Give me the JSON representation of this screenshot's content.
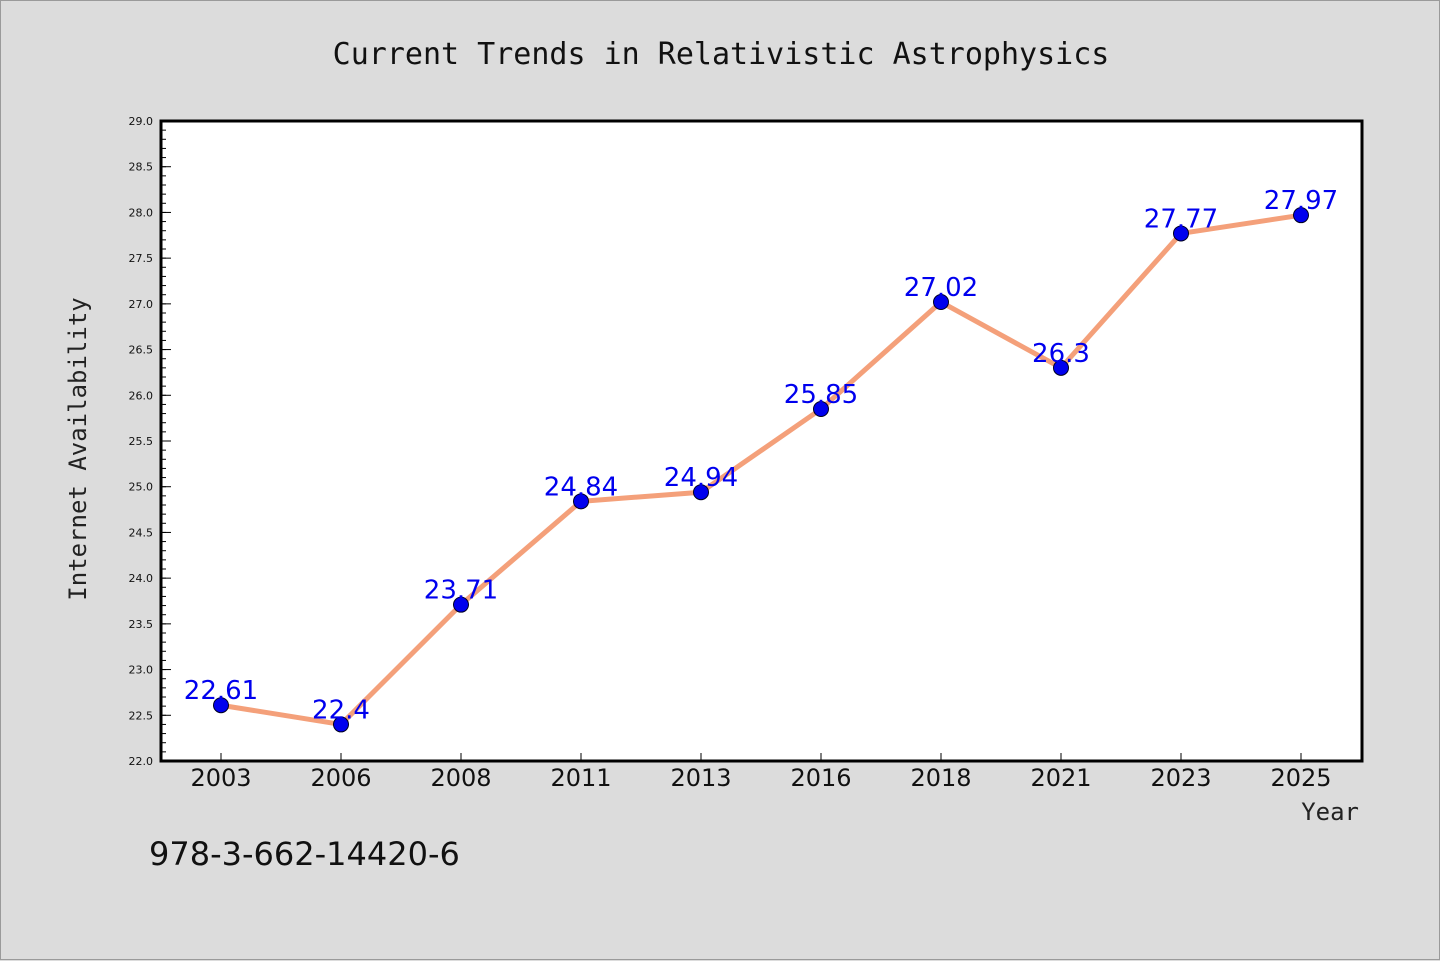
{
  "chart_data": {
    "type": "line",
    "title": "Current Trends in Relativistic Astrophysics",
    "xlabel": "Year",
    "ylabel": "Internet Availability",
    "categories": [
      "2003",
      "2006",
      "2008",
      "2011",
      "2013",
      "2016",
      "2018",
      "2021",
      "2023",
      "2025"
    ],
    "series": [
      {
        "values": [
          22.61,
          22.4,
          23.71,
          24.84,
          24.94,
          25.85,
          27.02,
          26.3,
          27.77,
          27.97
        ],
        "data_labels": [
          "22.61",
          "22.4",
          "23.71",
          "24.84",
          "24.94",
          "25.85",
          "27.02",
          "26.3",
          "27.77",
          "27.97"
        ]
      }
    ],
    "ylim": [
      22.0,
      29.0
    ],
    "yticks": [
      "22.0",
      "22.5",
      "23.0",
      "23.5",
      "24.0",
      "24.5",
      "25.0",
      "25.5",
      "26.0",
      "26.5",
      "27.0",
      "27.5",
      "28.0",
      "28.5",
      "29.0"
    ],
    "grid": false,
    "legend": "none",
    "colors": {
      "line": "#f4a07a",
      "marker": "#0000ee",
      "data_label": "#0000ee",
      "plot_background": "#ffffff",
      "page_background": "#dcdcdc"
    }
  },
  "footer": {
    "isbn": "978-3-662-14420-6"
  }
}
